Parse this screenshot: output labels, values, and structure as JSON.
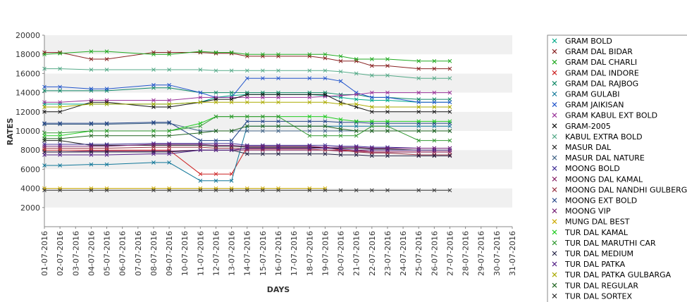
{
  "chart_data": {
    "type": "line",
    "xlabel": "DAYS",
    "ylabel": "RATES",
    "ylim": [
      0,
      20000
    ],
    "yticks": [
      2000,
      4000,
      6000,
      8000,
      10000,
      12000,
      14000,
      16000,
      18000,
      20000
    ],
    "grid": "alternating horizontal bands",
    "legend": "right",
    "categories": [
      "01-07-2016",
      "02-07-2016",
      "03-07-2016",
      "04-07-2016",
      "05-07-2016",
      "06-07-2016",
      "07-07-2016",
      "08-07-2016",
      "09-07-2016",
      "10-07-2016",
      "11-07-2016",
      "12-07-2016",
      "13-07-2016",
      "14-07-2016",
      "15-07-2016",
      "16-07-2016",
      "17-07-2016",
      "18-07-2016",
      "19-07-2016",
      "20-07-2016",
      "21-07-2016",
      "22-07-2016",
      "23-07-2016",
      "24-07-2016",
      "25-07-2016",
      "26-07-2016",
      "27-07-2016",
      "28-07-2016",
      "29-07-2016",
      "30-07-2016",
      "31-07-2016"
    ],
    "series": [
      {
        "name": "GRAM BOLD",
        "color": "#00aa88",
        "values": [
          12800,
          12800,
          null,
          12800,
          12800,
          null,
          null,
          12800,
          12800,
          null,
          13000,
          13500,
          13700,
          13800,
          13800,
          13800,
          null,
          13800,
          13700,
          13500,
          13300,
          13200,
          13200,
          null,
          13000,
          13000,
          13000,
          null,
          null,
          null,
          null
        ]
      },
      {
        "name": "GRAM DAL BIDAR",
        "color": "#882222",
        "values": [
          18200,
          18200,
          null,
          17500,
          17500,
          null,
          null,
          18200,
          18200,
          null,
          18200,
          18100,
          18100,
          17800,
          17800,
          17800,
          null,
          17800,
          17600,
          17300,
          17300,
          16800,
          16800,
          null,
          16500,
          16500,
          16500,
          null,
          null,
          null,
          null
        ]
      },
      {
        "name": "GRAM DAL CHARLI",
        "color": "#22aa22",
        "values": [
          18000,
          18100,
          null,
          18300,
          18300,
          null,
          null,
          18000,
          18000,
          null,
          18300,
          18200,
          18200,
          18000,
          18000,
          18000,
          null,
          18000,
          18000,
          17800,
          17500,
          17500,
          17500,
          null,
          17300,
          17300,
          17300,
          null,
          null,
          null,
          null
        ]
      },
      {
        "name": "GRAM DAL INDORE",
        "color": "#cc2222",
        "values": [
          8000,
          8000,
          null,
          8000,
          8000,
          null,
          null,
          8000,
          8000,
          null,
          5500,
          5500,
          5500,
          8300,
          8300,
          8300,
          null,
          8300,
          8300,
          8000,
          8000,
          7800,
          7800,
          null,
          7800,
          7800,
          7800,
          null,
          null,
          null,
          null
        ]
      },
      {
        "name": "GRAM DAL RAJBOG",
        "color": "#118866",
        "values": [
          14200,
          14200,
          null,
          14200,
          14200,
          null,
          null,
          14500,
          14500,
          null,
          14000,
          14000,
          14000,
          14000,
          14000,
          14000,
          null,
          14000,
          14000,
          13800,
          13800,
          13500,
          13500,
          null,
          13300,
          13300,
          13300,
          null,
          null,
          null,
          null
        ]
      },
      {
        "name": "GRAM GULABI",
        "color": "#117799",
        "values": [
          6400,
          6400,
          null,
          6500,
          6500,
          null,
          null,
          6700,
          6700,
          null,
          4800,
          4800,
          4800,
          10500,
          10500,
          10500,
          null,
          10500,
          10500,
          10500,
          10500,
          10500,
          10500,
          null,
          10500,
          10500,
          10500,
          null,
          null,
          null,
          null
        ]
      },
      {
        "name": "GRAM JAIKISAN",
        "color": "#2255cc",
        "values": [
          14600,
          14600,
          null,
          14400,
          14400,
          null,
          null,
          14800,
          14800,
          null,
          14000,
          13500,
          13500,
          15500,
          15500,
          15500,
          null,
          15500,
          15500,
          15200,
          14000,
          13500,
          13500,
          null,
          13000,
          13000,
          13000,
          null,
          null,
          null,
          null
        ]
      },
      {
        "name": "GRAM KABUL EXT BOLD",
        "color": "#993399",
        "values": [
          13000,
          13000,
          null,
          13200,
          13200,
          null,
          null,
          13200,
          13200,
          null,
          13500,
          13500,
          13500,
          13500,
          13500,
          13500,
          null,
          13500,
          13600,
          13700,
          13800,
          14000,
          14000,
          null,
          14000,
          14000,
          14000,
          null,
          null,
          null,
          null
        ]
      },
      {
        "name": "GRAM-2005",
        "color": "#111111",
        "values": [
          12000,
          12000,
          null,
          13000,
          13000,
          null,
          null,
          12500,
          12500,
          null,
          13000,
          13300,
          13300,
          13800,
          13800,
          13800,
          null,
          13800,
          13800,
          13000,
          12500,
          12000,
          12000,
          null,
          12000,
          12000,
          12000,
          null,
          null,
          null,
          null
        ]
      },
      {
        "name": "KABUL EXTRA BOLD",
        "color": "#55aa88",
        "values": [
          16500,
          16500,
          null,
          16400,
          16400,
          null,
          null,
          16400,
          16400,
          null,
          16400,
          16300,
          16300,
          16300,
          16300,
          16300,
          null,
          16300,
          16300,
          16200,
          16000,
          15800,
          15800,
          null,
          15500,
          15500,
          15500,
          null,
          null,
          null,
          null
        ]
      },
      {
        "name": "MASUR DAL",
        "color": "#222222",
        "values": [
          9000,
          9000,
          null,
          8500,
          8500,
          null,
          null,
          8500,
          8500,
          null,
          8500,
          8400,
          8400,
          8300,
          8300,
          8300,
          null,
          8300,
          8200,
          8200,
          8200,
          8100,
          8100,
          null,
          8000,
          8000,
          8000,
          null,
          null,
          null,
          null
        ]
      },
      {
        "name": "MASUR DAL NATURE",
        "color": "#446688",
        "values": [
          10700,
          10700,
          null,
          10700,
          10700,
          null,
          null,
          10800,
          10800,
          null,
          10000,
          10000,
          10000,
          10000,
          10000,
          10000,
          null,
          10000,
          10000,
          10000,
          10000,
          10000,
          10000,
          null,
          10000,
          10000,
          10000,
          null,
          null,
          null,
          null
        ]
      },
      {
        "name": "MOONG BOLD",
        "color": "#443399",
        "values": [
          8600,
          8600,
          null,
          8600,
          8600,
          null,
          null,
          8700,
          8700,
          null,
          8700,
          8700,
          8700,
          8500,
          8500,
          8500,
          null,
          8500,
          8500,
          8400,
          8400,
          8300,
          8300,
          null,
          8200,
          8200,
          8200,
          null,
          null,
          null,
          null
        ]
      },
      {
        "name": "MOONG DAL KAMAL",
        "color": "#882266",
        "values": [
          7800,
          7800,
          null,
          7900,
          7900,
          null,
          null,
          7900,
          7900,
          null,
          8000,
          8000,
          8000,
          8000,
          8000,
          8000,
          null,
          8000,
          8000,
          7900,
          7900,
          7800,
          7800,
          null,
          7800,
          7800,
          7800,
          null,
          null,
          null,
          null
        ]
      },
      {
        "name": "MOONG DAL NANDHI GULBERGA",
        "color": "#993344",
        "values": [
          8200,
          8200,
          null,
          8200,
          8200,
          null,
          null,
          8300,
          8300,
          null,
          8300,
          8200,
          8200,
          8100,
          8100,
          8100,
          null,
          8100,
          8000,
          8000,
          7800,
          7700,
          7700,
          null,
          7500,
          7500,
          7500,
          null,
          null,
          null,
          null
        ]
      },
      {
        "name": "MOONG EXT BOLD",
        "color": "#224488",
        "values": [
          10800,
          10800,
          null,
          10800,
          10800,
          null,
          null,
          10900,
          10900,
          null,
          9000,
          9000,
          9000,
          11000,
          11000,
          11000,
          null,
          11000,
          11000,
          10900,
          10900,
          10800,
          10800,
          null,
          10800,
          10800,
          10800,
          null,
          null,
          null,
          null
        ]
      },
      {
        "name": "MOONG VIP",
        "color": "#772277",
        "values": [
          8400,
          8400,
          null,
          8400,
          8400,
          null,
          null,
          8600,
          8600,
          null,
          8600,
          8500,
          8500,
          8400,
          8400,
          8400,
          null,
          8400,
          8300,
          8300,
          8300,
          8200,
          8200,
          null,
          8200,
          8200,
          8200,
          null,
          null,
          null,
          null
        ]
      },
      {
        "name": "MUNG DAL BEST",
        "color": "#ccaa00",
        "values": [
          4000,
          4000,
          null,
          4000,
          4000,
          null,
          null,
          4000,
          4000,
          null,
          4000,
          4000,
          4000,
          4000,
          4000,
          4000,
          null,
          4000,
          4000,
          null,
          null,
          null,
          null,
          null,
          null,
          null,
          null,
          null,
          null,
          null,
          null
        ]
      },
      {
        "name": "TUR DAL KAMAL",
        "color": "#22cc22",
        "values": [
          9500,
          9500,
          null,
          10000,
          10000,
          null,
          null,
          10000,
          10000,
          null,
          10800,
          11500,
          11500,
          11500,
          11500,
          11500,
          null,
          11500,
          11500,
          11200,
          11000,
          11000,
          11000,
          null,
          11000,
          11000,
          11000,
          null,
          null,
          null,
          null
        ]
      },
      {
        "name": "TUR DAL MARUTHI CAR",
        "color": "#339933",
        "values": [
          9800,
          9800,
          null,
          10000,
          10000,
          null,
          null,
          10000,
          10000,
          null,
          10500,
          11500,
          11500,
          11500,
          11500,
          11500,
          null,
          9500,
          9500,
          9500,
          9500,
          10500,
          10500,
          null,
          9000,
          9000,
          9000,
          null,
          null,
          null,
          null
        ]
      },
      {
        "name": "TUR DAL MEDIUM",
        "color": "#222244",
        "values": [
          7800,
          7800,
          null,
          7800,
          7800,
          null,
          null,
          7800,
          7800,
          null,
          8000,
          8000,
          8000,
          7600,
          7600,
          7600,
          null,
          7600,
          7600,
          7500,
          7500,
          7400,
          7400,
          null,
          7400,
          7400,
          7400,
          null,
          null,
          null,
          null
        ]
      },
      {
        "name": "TUR DAL PATKA",
        "color": "#552288",
        "values": [
          7500,
          7500,
          null,
          7500,
          7500,
          null,
          null,
          7600,
          7600,
          null,
          8000,
          8000,
          8000,
          8200,
          8200,
          8200,
          null,
          8200,
          8200,
          8100,
          8000,
          8000,
          8000,
          null,
          8000,
          8000,
          8000,
          null,
          null,
          null,
          null
        ]
      },
      {
        "name": "TUR DAL PATKA GULBARGA",
        "color": "#aaaa00",
        "values": [
          12500,
          12500,
          null,
          12800,
          12800,
          null,
          null,
          12800,
          12800,
          null,
          13000,
          13000,
          13000,
          13000,
          13000,
          13000,
          null,
          13000,
          13000,
          12800,
          12800,
          12500,
          12500,
          null,
          12500,
          12500,
          12500,
          null,
          null,
          null,
          null
        ]
      },
      {
        "name": "TUR DAL REGULAR",
        "color": "#226622",
        "values": [
          9200,
          9200,
          null,
          9500,
          9500,
          null,
          null,
          9500,
          9500,
          null,
          9800,
          10000,
          10000,
          10500,
          10500,
          10500,
          null,
          10500,
          10500,
          10200,
          10000,
          10000,
          10000,
          null,
          10000,
          10000,
          10000,
          null,
          null,
          null,
          null
        ]
      },
      {
        "name": "TUR DAL SORTEX",
        "color": "#333333",
        "values": [
          3800,
          3800,
          null,
          3800,
          3800,
          null,
          null,
          3800,
          3800,
          null,
          3800,
          3800,
          3800,
          3800,
          3800,
          3800,
          null,
          3800,
          3800,
          3800,
          3800,
          3800,
          3800,
          null,
          3800,
          3800,
          3800,
          null,
          null,
          null,
          null
        ]
      }
    ]
  }
}
